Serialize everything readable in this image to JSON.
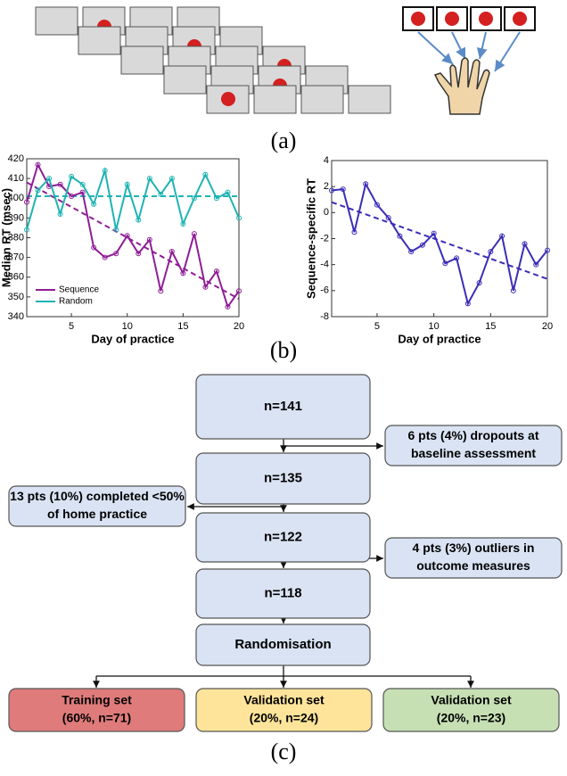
{
  "panel_labels": [
    "(a)",
    "(b)",
    "(c)"
  ],
  "chart_data": [
    {
      "type": "line",
      "ylabel": "Median RT (msec)",
      "xlabel": "Day of practice",
      "x": [
        1,
        2,
        3,
        4,
        5,
        6,
        7,
        8,
        9,
        10,
        11,
        12,
        13,
        14,
        15,
        16,
        17,
        18,
        19,
        20
      ],
      "xlim": [
        1,
        20
      ],
      "xticks": [
        5,
        10,
        15,
        20
      ],
      "ylim": [
        340,
        420
      ],
      "yticks": [
        340,
        350,
        360,
        370,
        380,
        390,
        400,
        410,
        420
      ],
      "series": [
        {
          "name": "Sequence",
          "color": "#8e1e96",
          "values": [
            398,
            417,
            406,
            407,
            401,
            403,
            375,
            370,
            372,
            381,
            372,
            379,
            353,
            373,
            362,
            382,
            355,
            363,
            345,
            353
          ]
        },
        {
          "name": "Random",
          "color": "#1fb3b3",
          "values": [
            384,
            404,
            410,
            392,
            411,
            407,
            397,
            414,
            384,
            407,
            389,
            410,
            402,
            410,
            387,
            400,
            412,
            400,
            403,
            390
          ]
        }
      ],
      "fits": [
        {
          "color": "#8e1e96",
          "x": [
            1,
            20
          ],
          "values": [
            408,
            349
          ]
        },
        {
          "color": "#1fb3b3",
          "x": [
            1,
            20
          ],
          "values": [
            401,
            401
          ]
        }
      ],
      "legend": "lower-left"
    },
    {
      "type": "line",
      "ylabel": "Sequence-specific RT",
      "xlabel": "Day of practice",
      "x": [
        1,
        2,
        3,
        4,
        5,
        6,
        7,
        8,
        9,
        10,
        11,
        12,
        13,
        14,
        15,
        16,
        17,
        18,
        19,
        20
      ],
      "xlim": [
        1,
        20
      ],
      "xticks": [
        5,
        10,
        15,
        20
      ],
      "ylim": [
        -8,
        4
      ],
      "yticks": [
        -8,
        -6,
        -4,
        -2,
        0,
        2,
        4
      ],
      "series": [
        {
          "color": "#3a2db8",
          "values": [
            1.7,
            1.8,
            -1.5,
            2.2,
            0.6,
            -0.4,
            -1.8,
            -3.0,
            -2.5,
            -1.6,
            -3.9,
            -3.5,
            -7.0,
            -5.4,
            -3.0,
            -1.8,
            -6.0,
            -2.4,
            -4.0,
            -2.9
          ]
        }
      ],
      "fits": [
        {
          "color": "#3a2db8",
          "x": [
            1,
            20
          ],
          "values": [
            0.8,
            -5.1
          ]
        }
      ]
    }
  ],
  "flowchart": {
    "nodes": [
      {
        "lines": [
          "n=141"
        ]
      },
      {
        "lines": [
          "n=135"
        ]
      },
      {
        "lines": [
          "n=122"
        ]
      },
      {
        "lines": [
          "n=118"
        ]
      },
      {
        "lines": [
          "Randomisation"
        ]
      }
    ],
    "exclusions": [
      {
        "lines": [
          "6 pts (4%) dropouts at",
          "baseline assessment"
        ]
      },
      {
        "lines": [
          "13 pts (10%) completed <50%",
          "of home practice"
        ]
      },
      {
        "lines": [
          "4 pts (3%) outliers in",
          "outcome measures"
        ]
      }
    ],
    "outcomes": [
      {
        "lines": [
          "Training set",
          "(60%, n=71)"
        ],
        "color": "#e07b7b"
      },
      {
        "lines": [
          "Validation set",
          "(20%, n=24)"
        ],
        "color": "#fde49a"
      },
      {
        "lines": [
          "Validation set",
          "(20%, n=23)"
        ],
        "color": "#c6e0b4"
      }
    ]
  }
}
